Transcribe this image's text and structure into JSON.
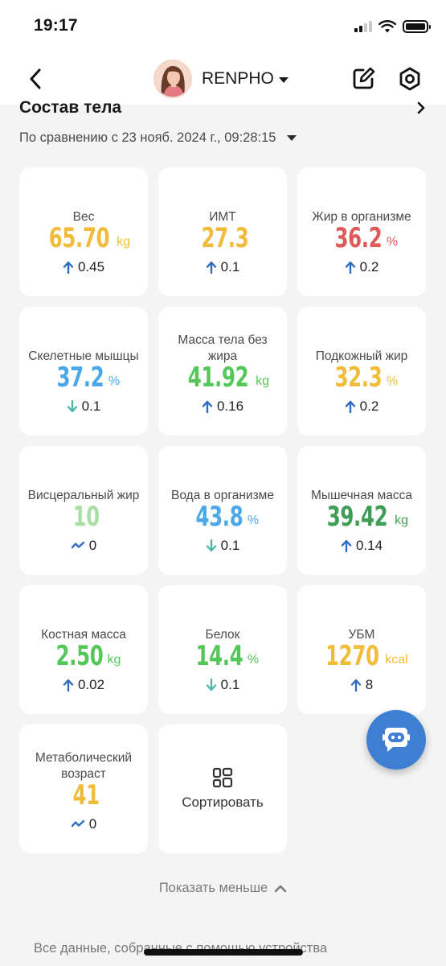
{
  "status_bar": {
    "time": "19:17"
  },
  "nav": {
    "title": "RENPHO"
  },
  "section": {
    "title": "Состав тела",
    "compare_text": "По сравнению с 23 нояб. 2024 г., 09:28:15"
  },
  "colors": {
    "yellow": "#f2bc3b",
    "red": "#e05a5a",
    "blue": "#4aa8e8",
    "green": "#54c759",
    "light_green": "#a8e0a4",
    "dark_green": "#3f9e55",
    "up_arrow": "#2e6cc2",
    "down_arrow": "#4cb8a8",
    "fab": "#3e7fd3"
  },
  "metrics": [
    {
      "label": "Вес",
      "value": "65.70",
      "unit": "kg",
      "color": "#f2bc3b",
      "delta_dir": "up",
      "delta": "0.45"
    },
    {
      "label": "ИМТ",
      "value": "27.3",
      "unit": "",
      "color": "#f2bc3b",
      "delta_dir": "up",
      "delta": "0.1"
    },
    {
      "label": "Жир в организме",
      "value": "36.2",
      "unit": "%",
      "color": "#e05a5a",
      "delta_dir": "up",
      "delta": "0.2"
    },
    {
      "label": "Скелетные мышцы",
      "value": "37.2",
      "unit": "%",
      "color": "#4aa8e8",
      "delta_dir": "down",
      "delta": "0.1"
    },
    {
      "label": "Масса тела без жира",
      "value": "41.92",
      "unit": "kg",
      "color": "#54c759",
      "delta_dir": "up",
      "delta": "0.16"
    },
    {
      "label": "Подкожный жир",
      "value": "32.3",
      "unit": "%",
      "color": "#f2bc3b",
      "delta_dir": "up",
      "delta": "0.2"
    },
    {
      "label": "Висцеральный жир",
      "value": "10",
      "unit": "",
      "color": "#a8e0a4",
      "delta_dir": "flat",
      "delta": "0"
    },
    {
      "label": "Вода в организме",
      "value": "43.8",
      "unit": "%",
      "color": "#4aa8e8",
      "delta_dir": "down",
      "delta": "0.1"
    },
    {
      "label": "Мышечная масса",
      "value": "39.42",
      "unit": "kg",
      "color": "#3f9e55",
      "delta_dir": "up",
      "delta": "0.14"
    },
    {
      "label": "Костная масса",
      "value": "2.50",
      "unit": "kg",
      "color": "#54c759",
      "delta_dir": "up",
      "delta": "0.02"
    },
    {
      "label": "Белок",
      "value": "14.4",
      "unit": "%",
      "color": "#54c759",
      "delta_dir": "down",
      "delta": "0.1"
    },
    {
      "label": "УБМ",
      "value": "1270",
      "unit": "kcal",
      "color": "#f2bc3b",
      "delta_dir": "up",
      "delta": "8"
    },
    {
      "label": "Метаболический возраст",
      "value": "41",
      "unit": "",
      "color": "#f2bc3b",
      "delta_dir": "flat",
      "delta": "0"
    }
  ],
  "sort_label": "Сортировать",
  "show_less": "Показать меньше",
  "footer_note": "Все данные, собранные с помощью устройства"
}
